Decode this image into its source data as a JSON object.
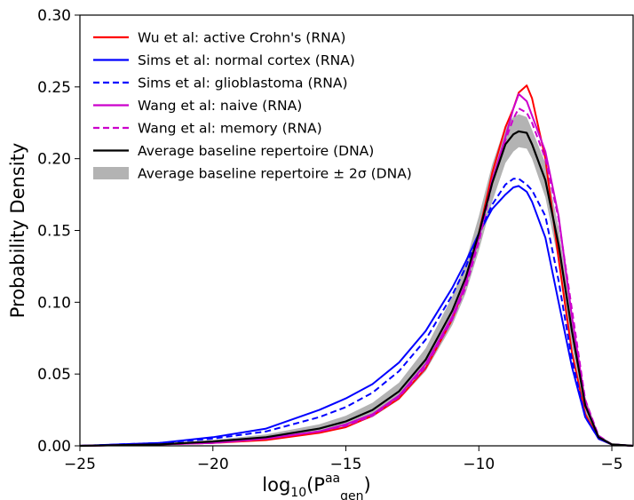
{
  "chart_data": {
    "type": "line",
    "xlabel": "log10(Paa gen)",
    "xlabel_parts": {
      "base": "log",
      "sub": "10",
      "open": "(P",
      "sup": "aa",
      "psub": "gen",
      "close": ")"
    },
    "ylabel": "Probability Density",
    "xlim": [
      -25,
      -4.2
    ],
    "ylim": [
      0,
      0.3
    ],
    "xticks": [
      -25,
      -20,
      -15,
      -10,
      -5
    ],
    "xtick_labels": [
      "−25",
      "−20",
      "−15",
      "−10",
      "−5"
    ],
    "yticks": [
      0,
      0.05,
      0.1,
      0.15,
      0.2,
      0.25,
      0.3
    ],
    "ytick_labels": [
      "0.00",
      "0.05",
      "0.10",
      "0.15",
      "0.20",
      "0.25",
      "0.30"
    ],
    "grid": false,
    "legend_position": "top-left",
    "series": [
      {
        "name": "Wu et al: active Crohn's (RNA)",
        "color": "#ff0000",
        "dash": "solid",
        "x": [
          -25,
          -22,
          -20,
          -18,
          -16,
          -15,
          -14,
          -13,
          -12,
          -11,
          -10.5,
          -10,
          -9.5,
          -9,
          -8.7,
          -8.5,
          -8.2,
          -8,
          -7.5,
          -7,
          -6.5,
          -6,
          -5.5,
          -5,
          -4.2
        ],
        "y": [
          0,
          0.001,
          0.002,
          0.004,
          0.009,
          0.013,
          0.021,
          0.033,
          0.054,
          0.088,
          0.113,
          0.148,
          0.19,
          0.222,
          0.235,
          0.246,
          0.251,
          0.242,
          0.2,
          0.13,
          0.065,
          0.022,
          0.005,
          0.001,
          0
        ]
      },
      {
        "name": "Sims et al: normal cortex (RNA)",
        "color": "#0000ff",
        "dash": "solid",
        "x": [
          -25,
          -22,
          -20,
          -18,
          -16,
          -15,
          -14,
          -13,
          -12,
          -11,
          -10.5,
          -10,
          -9.5,
          -9,
          -8.7,
          -8.5,
          -8.2,
          -8,
          -7.5,
          -7,
          -6.5,
          -6,
          -5.5,
          -5,
          -4.2
        ],
        "y": [
          0,
          0.002,
          0.006,
          0.012,
          0.025,
          0.033,
          0.043,
          0.058,
          0.08,
          0.11,
          0.128,
          0.148,
          0.165,
          0.175,
          0.18,
          0.181,
          0.177,
          0.17,
          0.145,
          0.1,
          0.055,
          0.02,
          0.005,
          0.001,
          0
        ]
      },
      {
        "name": "Sims et al: glioblastoma (RNA)",
        "color": "#0000ff",
        "dash": "dashed",
        "x": [
          -25,
          -22,
          -20,
          -18,
          -16,
          -15,
          -14,
          -13,
          -12,
          -11,
          -10.5,
          -10,
          -9.5,
          -9,
          -8.7,
          -8.5,
          -8.2,
          -8,
          -7.5,
          -7,
          -6.5,
          -6,
          -5.5,
          -5,
          -4.2
        ],
        "y": [
          0,
          0.002,
          0.005,
          0.01,
          0.02,
          0.027,
          0.037,
          0.052,
          0.074,
          0.105,
          0.124,
          0.148,
          0.168,
          0.182,
          0.186,
          0.186,
          0.182,
          0.178,
          0.16,
          0.115,
          0.06,
          0.02,
          0.005,
          0.001,
          0
        ]
      },
      {
        "name": "Wang et al: naive (RNA)",
        "color": "#cc00cc",
        "dash": "solid",
        "x": [
          -25,
          -22,
          -20,
          -18,
          -16,
          -15,
          -14,
          -13,
          -12,
          -11,
          -10.5,
          -10,
          -9.5,
          -9,
          -8.7,
          -8.5,
          -8.2,
          -8,
          -7.5,
          -7,
          -6.5,
          -6,
          -5.5,
          -5,
          -4.2
        ],
        "y": [
          0,
          0.001,
          0.002,
          0.005,
          0.01,
          0.015,
          0.022,
          0.035,
          0.057,
          0.09,
          0.113,
          0.145,
          0.185,
          0.215,
          0.235,
          0.245,
          0.24,
          0.23,
          0.205,
          0.16,
          0.09,
          0.03,
          0.006,
          0.001,
          0
        ]
      },
      {
        "name": "Wang et al: memory (RNA)",
        "color": "#cc00cc",
        "dash": "dashed",
        "x": [
          -25,
          -22,
          -20,
          -18,
          -16,
          -15,
          -14,
          -13,
          -12,
          -11,
          -10.5,
          -10,
          -9.5,
          -9,
          -8.7,
          -8.5,
          -8.2,
          -8,
          -7.5,
          -7,
          -6.5,
          -6,
          -5.5,
          -5,
          -4.2
        ],
        "y": [
          0,
          0.001,
          0.002,
          0.005,
          0.01,
          0.014,
          0.021,
          0.034,
          0.055,
          0.088,
          0.11,
          0.142,
          0.183,
          0.213,
          0.228,
          0.235,
          0.232,
          0.225,
          0.2,
          0.158,
          0.095,
          0.032,
          0.007,
          0.001,
          0
        ]
      },
      {
        "name": "Average baseline repertoire (DNA)",
        "color": "#000000",
        "dash": "solid",
        "x": [
          -25,
          -22,
          -20,
          -18,
          -16,
          -15,
          -14,
          -13,
          -12,
          -11,
          -10.5,
          -10,
          -9.5,
          -9,
          -8.7,
          -8.5,
          -8.2,
          -8,
          -7.5,
          -7,
          -6.5,
          -6,
          -5.5,
          -5,
          -4.2
        ],
        "y": [
          0,
          0.001,
          0.003,
          0.006,
          0.012,
          0.017,
          0.025,
          0.038,
          0.06,
          0.094,
          0.117,
          0.148,
          0.183,
          0.21,
          0.217,
          0.219,
          0.218,
          0.21,
          0.185,
          0.14,
          0.08,
          0.028,
          0.006,
          0.001,
          0
        ]
      }
    ],
    "band": {
      "name": "Average baseline repertoire ± 2σ (DNA)",
      "color": "#b3b3b3",
      "x": [
        -25,
        -22,
        -20,
        -18,
        -16,
        -15,
        -14,
        -13,
        -12,
        -11,
        -10.5,
        -10,
        -9.5,
        -9,
        -8.7,
        -8.5,
        -8.2,
        -8,
        -7.5,
        -7,
        -6.5,
        -6,
        -5.5,
        -5,
        -4.2
      ],
      "lower": [
        0,
        0.0005,
        0.002,
        0.004,
        0.009,
        0.013,
        0.02,
        0.032,
        0.052,
        0.084,
        0.106,
        0.136,
        0.17,
        0.197,
        0.205,
        0.208,
        0.207,
        0.2,
        0.173,
        0.128,
        0.07,
        0.022,
        0.004,
        0.0005,
        0
      ],
      "upper": [
        0,
        0.0015,
        0.004,
        0.008,
        0.015,
        0.021,
        0.03,
        0.044,
        0.068,
        0.104,
        0.128,
        0.16,
        0.196,
        0.223,
        0.229,
        0.231,
        0.229,
        0.22,
        0.197,
        0.152,
        0.09,
        0.034,
        0.008,
        0.0015,
        0
      ]
    }
  }
}
